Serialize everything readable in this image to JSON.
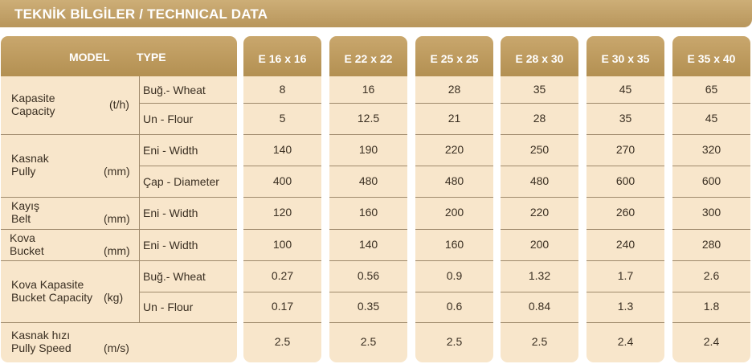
{
  "title": "TEKNİK BİLGİLER / TECHNICAL DATA",
  "header": {
    "model_label": "MODEL",
    "type_label": "TYPE"
  },
  "rows": [
    {
      "group_tr": "Kapasite",
      "group_en": "Capacity",
      "unit": "(t/h)",
      "subs": [
        {
          "type": "Buğ.-  Wheat"
        },
        {
          "type": "Un -  Flour"
        }
      ]
    },
    {
      "group_tr": "Kasnak",
      "group_en": "Pully",
      "unit": "(mm)",
      "subs": [
        {
          "type": "Eni -  Width"
        },
        {
          "type": "Çap -  Diameter"
        }
      ]
    },
    {
      "group_tr": "Kayış",
      "group_en": "Belt",
      "unit": "(mm)",
      "subs": [
        {
          "type": "Eni -  Width"
        }
      ]
    },
    {
      "group_tr": "Kova",
      "group_en": "Bucket",
      "unit": "(mm)",
      "subs": [
        {
          "type": "Eni -  Width"
        }
      ]
    },
    {
      "group_tr": "Kova  Kapasite",
      "group_en": "Bucket Capacity",
      "unit": "(kg)",
      "subs": [
        {
          "type": "Buğ.-  Wheat"
        },
        {
          "type": "Un -  Flour"
        }
      ]
    },
    {
      "group_tr": "Kasnak hızı",
      "group_en": "Pully Speed",
      "unit": "(m/s)",
      "subs": [
        {
          "type": ""
        }
      ]
    }
  ],
  "models": [
    {
      "name": "E 16 x 16",
      "values": [
        "8",
        "5",
        "140",
        "400",
        "120",
        "100",
        "0.27",
        "0.17",
        "2.5"
      ]
    },
    {
      "name": "E 22 x 22",
      "values": [
        "16",
        "12.5",
        "190",
        "480",
        "160",
        "140",
        "0.56",
        "0.35",
        "2.5"
      ]
    },
    {
      "name": "E 25 x 25",
      "values": [
        "28",
        "21",
        "220",
        "480",
        "200",
        "160",
        "0.9",
        "0.6",
        "2.5"
      ]
    },
    {
      "name": "E 28 x 30",
      "values": [
        "35",
        "28",
        "250",
        "480",
        "220",
        "200",
        "1.32",
        "0.84",
        "2.5"
      ]
    },
    {
      "name": "E 30 x 35",
      "values": [
        "45",
        "35",
        "270",
        "600",
        "260",
        "240",
        "1.7",
        "1.3",
        "2.4"
      ]
    },
    {
      "name": "E 35 x 40",
      "values": [
        "65",
        "45",
        "320",
        "600",
        "300",
        "280",
        "2.6",
        "1.8",
        "2.4"
      ]
    }
  ]
}
